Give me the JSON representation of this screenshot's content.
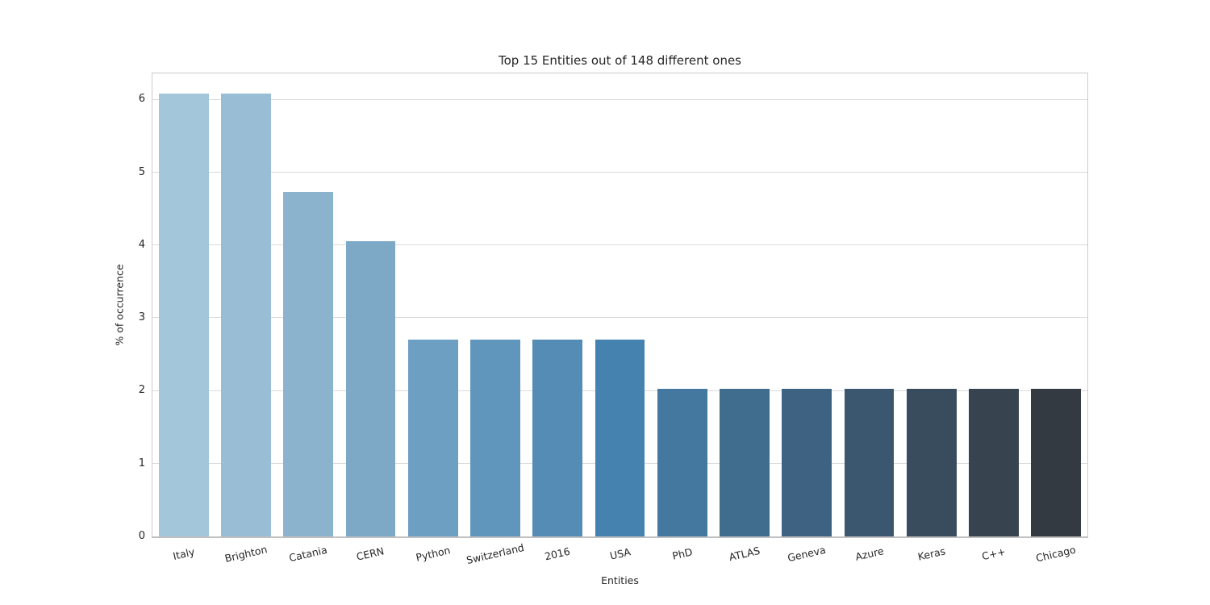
{
  "chart_data": {
    "type": "bar",
    "title": "Top 15 Entities out of 148 different ones",
    "xlabel": "Entities",
    "ylabel": "% of occurrence",
    "categories": [
      "Italy",
      "Brighton",
      "Catania",
      "CERN",
      "Python",
      "Switzerland",
      "2016",
      "USA",
      "PhD",
      "ATLAS",
      "Geneva",
      "Azure",
      "Keras",
      "C++",
      "Chicago"
    ],
    "values": [
      6.08,
      6.08,
      4.73,
      4.05,
      2.7,
      2.7,
      2.7,
      2.7,
      2.03,
      2.03,
      2.03,
      2.03,
      2.03,
      2.03,
      2.03
    ],
    "bar_colors": [
      "#a4c6db",
      "#98bdd4",
      "#8bb3cd",
      "#7da9c7",
      "#6d9fc2",
      "#6095bc",
      "#548cb6",
      "#4682b0",
      "#44789e",
      "#406c8e",
      "#3e6382",
      "#3b5770",
      "#394c5e",
      "#37434e",
      "#333a42"
    ],
    "ylim": [
      0,
      6.36
    ],
    "yticks": [
      0,
      1,
      2,
      3,
      4,
      5,
      6
    ],
    "ytick_labels": [
      "0",
      "1",
      "2",
      "3",
      "4",
      "5",
      "6"
    ],
    "grid": true,
    "legend": null,
    "x_tick_rotation_deg": 13,
    "colors": {
      "background": "#ffffff",
      "text": "#262626",
      "gridline": "#dadada",
      "spine": "#cbcbcb"
    }
  }
}
